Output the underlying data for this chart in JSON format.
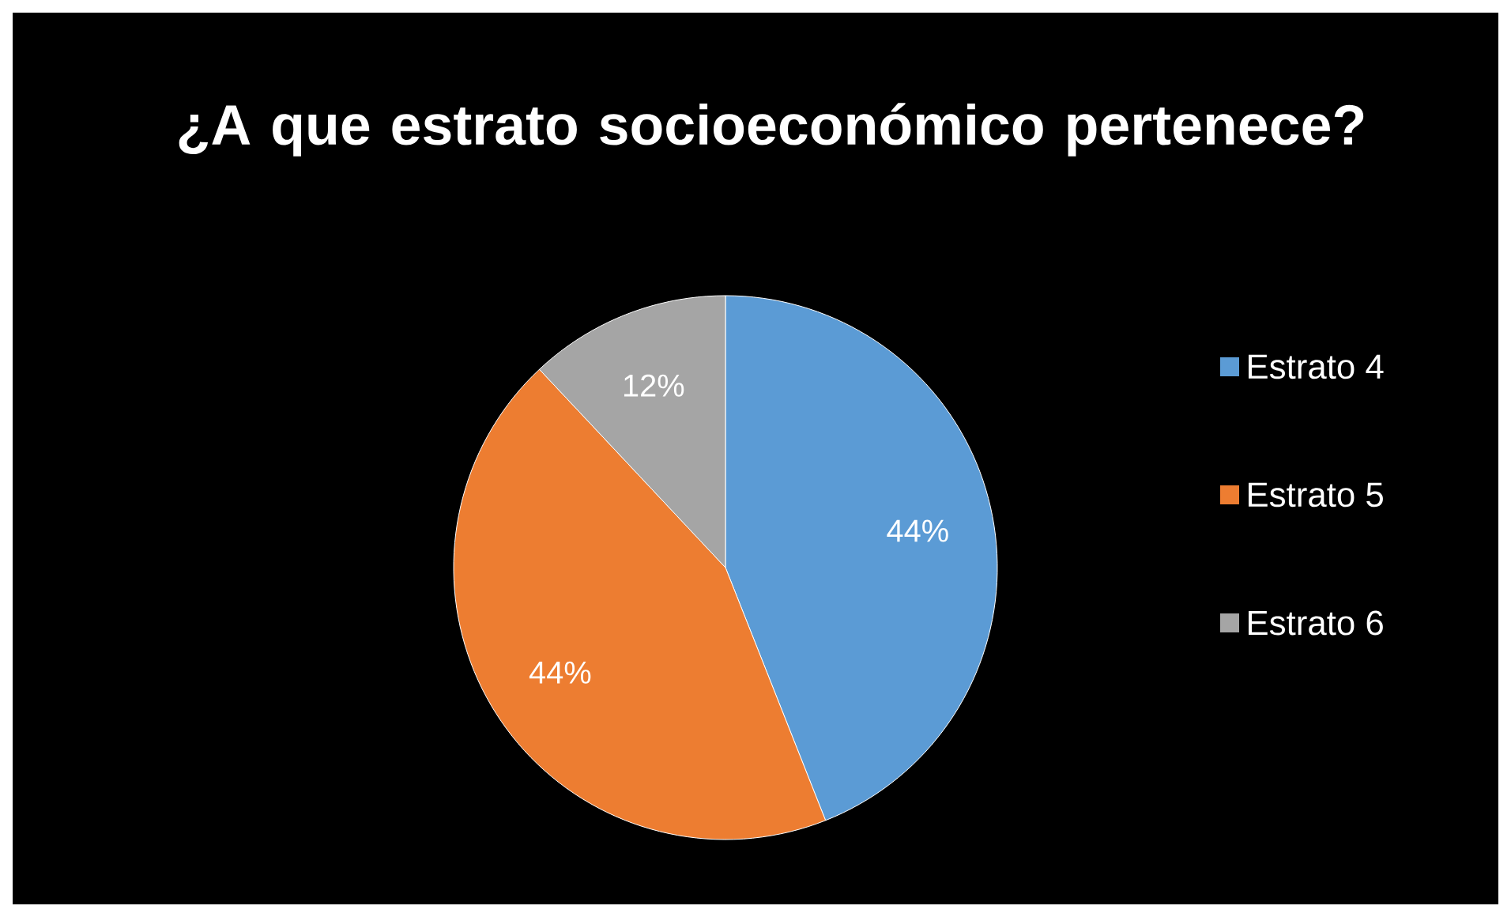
{
  "chart_data": {
    "type": "pie",
    "title": "¿A que estrato socioeconómico pertenece?",
    "categories": [
      "Estrato 4",
      "Estrato 5",
      "Estrato 6"
    ],
    "values": [
      44,
      44,
      12
    ],
    "value_labels": [
      "44%",
      "44%",
      "12%"
    ],
    "colors": [
      "#5b9bd5",
      "#ed7d31",
      "#a5a5a5"
    ],
    "legend": "right"
  }
}
